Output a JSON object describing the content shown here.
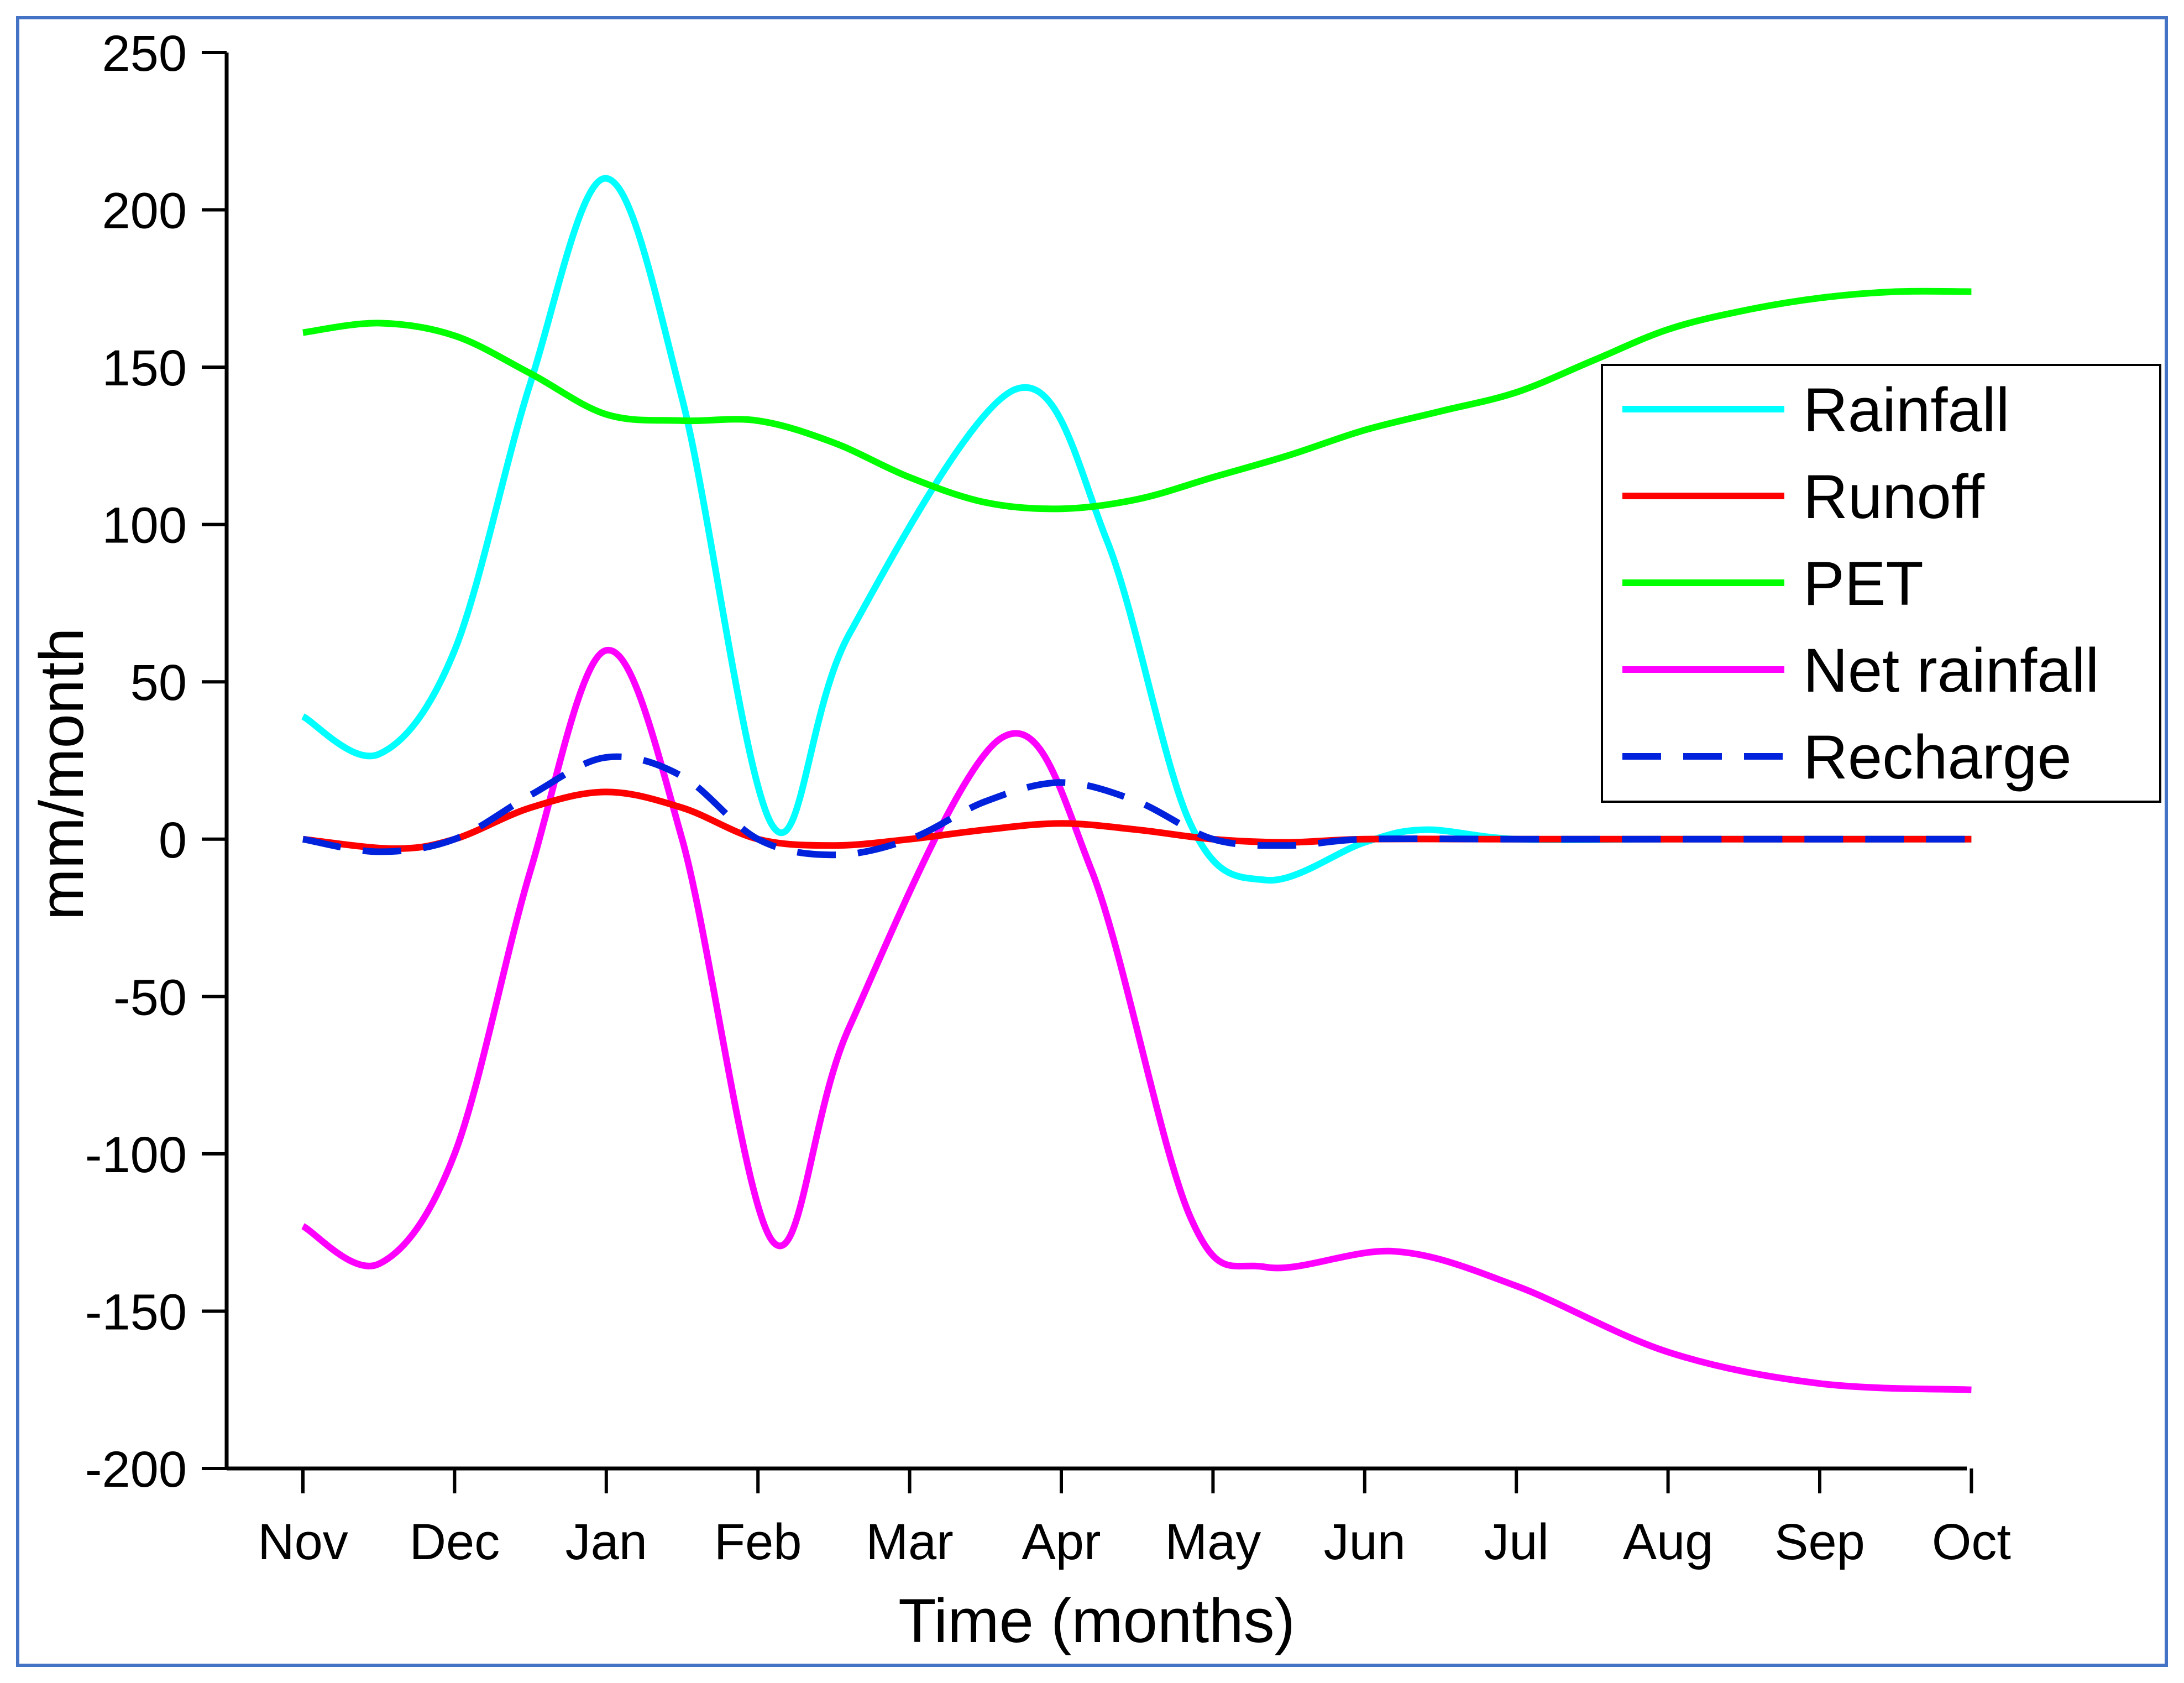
{
  "chart_data": {
    "type": "line",
    "xlabel": "Time (months)",
    "ylabel": "mm/month",
    "categories": [
      "Nov",
      "Dec",
      "Jan",
      "Feb",
      "Mar",
      "Apr",
      "May",
      "Jun",
      "Jul",
      "Aug",
      "Sep",
      "Oct"
    ],
    "ylim": [
      -200,
      250
    ],
    "yticks": [
      250,
      200,
      150,
      100,
      50,
      0,
      -50,
      -100,
      -150,
      -200
    ],
    "ytick_labels": [
      "250",
      "200",
      "150",
      "100",
      "50",
      "0",
      "-50",
      "-100",
      "-150",
      "-200"
    ],
    "grid": false,
    "legend_position": "top-right",
    "series": [
      {
        "name": "Rainfall",
        "color": "#00ffff",
        "dash": "solid",
        "points": [
          [
            0,
            39
          ],
          [
            0.5,
            27
          ],
          [
            1,
            60
          ],
          [
            1.5,
            145
          ],
          [
            2,
            210
          ],
          [
            2.5,
            140
          ],
          [
            3.1,
            4
          ],
          [
            3.6,
            65
          ],
          [
            4.7,
            143
          ],
          [
            5.3,
            95
          ],
          [
            5.85,
            5
          ],
          [
            6.35,
            -13
          ],
          [
            7,
            -1
          ],
          [
            7.4,
            3
          ],
          [
            8,
            0
          ],
          [
            9,
            0
          ],
          [
            10,
            0
          ],
          [
            11,
            0
          ]
        ]
      },
      {
        "name": "Runoff",
        "color": "#ff0000",
        "dash": "solid",
        "points": [
          [
            0,
            0
          ],
          [
            0.6,
            -3
          ],
          [
            1,
            0
          ],
          [
            1.5,
            10
          ],
          [
            2,
            15
          ],
          [
            2.5,
            10
          ],
          [
            3,
            0
          ],
          [
            3.5,
            -2
          ],
          [
            4,
            0
          ],
          [
            4.5,
            3
          ],
          [
            5,
            5
          ],
          [
            5.5,
            3
          ],
          [
            6,
            0
          ],
          [
            6.5,
            -1
          ],
          [
            7,
            0
          ],
          [
            8,
            0
          ],
          [
            9,
            0
          ],
          [
            10,
            0
          ],
          [
            11,
            0
          ]
        ]
      },
      {
        "name": "PET",
        "color": "#00ff00",
        "dash": "solid",
        "points": [
          [
            0,
            161
          ],
          [
            0.5,
            164
          ],
          [
            1,
            160
          ],
          [
            1.5,
            148
          ],
          [
            2,
            135
          ],
          [
            2.5,
            133
          ],
          [
            3,
            133
          ],
          [
            3.5,
            126
          ],
          [
            4,
            115
          ],
          [
            4.5,
            107
          ],
          [
            5,
            105
          ],
          [
            5.5,
            108
          ],
          [
            6,
            115
          ],
          [
            6.5,
            122
          ],
          [
            7,
            130
          ],
          [
            7.5,
            136
          ],
          [
            8,
            142
          ],
          [
            8.5,
            152
          ],
          [
            9,
            162
          ],
          [
            9.5,
            168
          ],
          [
            10,
            172
          ],
          [
            10.5,
            174
          ],
          [
            11,
            174
          ]
        ]
      },
      {
        "name": "Net rainfall",
        "color": "#ff00ff",
        "dash": "solid",
        "points": [
          [
            0,
            -123
          ],
          [
            0.5,
            -135
          ],
          [
            1,
            -100
          ],
          [
            1.5,
            -10
          ],
          [
            2,
            60
          ],
          [
            2.5,
            0
          ],
          [
            3.1,
            -128
          ],
          [
            3.6,
            -60
          ],
          [
            4.6,
            32
          ],
          [
            5.2,
            -10
          ],
          [
            5.85,
            -120
          ],
          [
            6.35,
            -136
          ],
          [
            7.2,
            -131
          ],
          [
            8,
            -142
          ],
          [
            9,
            -163
          ],
          [
            10,
            -173
          ],
          [
            11,
            -175
          ]
        ]
      },
      {
        "name": "Recharge",
        "color": "#0022dd",
        "dash": "dashed",
        "points": [
          [
            0,
            0
          ],
          [
            0.5,
            -4
          ],
          [
            1,
            0
          ],
          [
            1.5,
            14
          ],
          [
            2,
            26
          ],
          [
            2.5,
            20
          ],
          [
            3,
            0
          ],
          [
            3.5,
            -5
          ],
          [
            4,
            0
          ],
          [
            4.5,
            12
          ],
          [
            5,
            18
          ],
          [
            5.5,
            12
          ],
          [
            6,
            0
          ],
          [
            6.5,
            -2
          ],
          [
            7,
            0
          ],
          [
            8,
            0
          ],
          [
            9,
            0
          ],
          [
            10,
            0
          ],
          [
            11,
            0
          ]
        ]
      }
    ]
  }
}
